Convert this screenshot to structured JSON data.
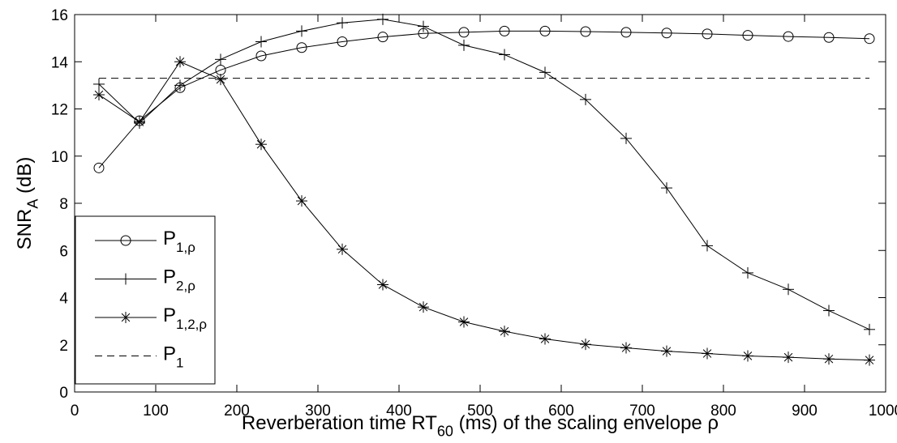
{
  "chart_data": {
    "type": "line",
    "x_label": {
      "text": "Reverberation time RT",
      "subscript": "60",
      "suffix": " (ms) of the scaling envelope ρ"
    },
    "y_label": {
      "text": "SNR",
      "subscript": "A",
      "suffix": " (dB)"
    },
    "x": [
      30,
      80,
      130,
      180,
      230,
      280,
      330,
      380,
      430,
      480,
      530,
      580,
      630,
      680,
      730,
      780,
      830,
      880,
      930,
      980
    ],
    "series": [
      {
        "name": "P",
        "subscript": "1,ρ",
        "marker": "o",
        "dash": "solid",
        "color": "#000000",
        "values": [
          9.5,
          11.5,
          12.9,
          13.65,
          14.25,
          14.6,
          14.85,
          15.05,
          15.2,
          15.25,
          15.3,
          15.3,
          15.28,
          15.25,
          15.22,
          15.18,
          15.12,
          15.07,
          15.03,
          14.98
        ]
      },
      {
        "name": "P",
        "subscript": "2,ρ",
        "marker": "+",
        "dash": "solid",
        "color": "#000000",
        "values": [
          13.05,
          11.4,
          13.0,
          14.1,
          14.85,
          15.3,
          15.65,
          15.8,
          15.5,
          14.7,
          14.3,
          13.55,
          12.4,
          10.75,
          8.65,
          6.2,
          5.05,
          4.35,
          3.45,
          2.65
        ]
      },
      {
        "name": "P",
        "subscript": "1,2,ρ",
        "marker": "*",
        "dash": "solid",
        "color": "#000000",
        "values": [
          12.6,
          11.45,
          14.0,
          13.25,
          10.5,
          8.1,
          6.05,
          4.55,
          3.6,
          2.97,
          2.57,
          2.25,
          2.02,
          1.87,
          1.73,
          1.63,
          1.53,
          1.47,
          1.4,
          1.35
        ]
      },
      {
        "name": "P",
        "subscript": "1",
        "marker": "none",
        "dash": "dashed",
        "color": "#000000",
        "x": [
          30,
          980
        ],
        "values": [
          13.3,
          13.3
        ]
      }
    ],
    "xlim": [
      0,
      1000
    ],
    "xticks": [
      0,
      100,
      200,
      300,
      400,
      500,
      600,
      700,
      800,
      900,
      1000
    ],
    "ylim": [
      0,
      16
    ],
    "yticks": [
      0,
      2,
      4,
      6,
      8,
      10,
      12,
      14,
      16
    ],
    "grid": false,
    "legend": "lower left"
  }
}
